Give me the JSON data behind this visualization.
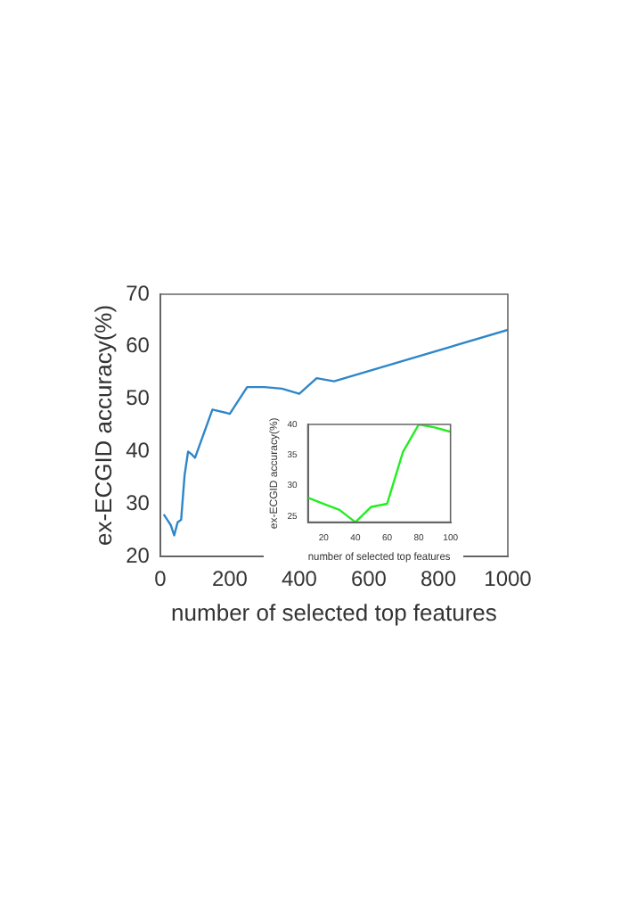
{
  "chart_data": [
    {
      "type": "line",
      "xlabel": "number of selected top features",
      "ylabel": "ex-ECGID accuracy(%)",
      "x": [
        10,
        20,
        30,
        40,
        50,
        60,
        70,
        80,
        90,
        100,
        150,
        200,
        250,
        300,
        350,
        400,
        450,
        500,
        1000
      ],
      "series": [
        {
          "color": "#2e86c8",
          "values": [
            28,
            27,
            26,
            24,
            26.5,
            27,
            35.5,
            40,
            39.5,
            38.8,
            48,
            47.2,
            52.3,
            52.3,
            52,
            51,
            54,
            53.4,
            63.2
          ]
        }
      ],
      "xlim": [
        0,
        1000
      ],
      "xticks": [
        0,
        200,
        400,
        600,
        800,
        1000
      ],
      "ylim": [
        20,
        70
      ],
      "yticks": [
        20,
        30,
        40,
        50,
        60,
        70
      ],
      "grid": false,
      "marker": "none",
      "line_style": "solid"
    },
    {
      "type": "line",
      "xlabel": "number of selected top features",
      "ylabel": "ex-ECGID accuracy(%)",
      "x": [
        10,
        20,
        30,
        40,
        50,
        60,
        70,
        80,
        90,
        100
      ],
      "series": [
        {
          "color": "#22ee22",
          "values": [
            28,
            27,
            26,
            24,
            26.5,
            27,
            35.5,
            40,
            39.5,
            38.8
          ]
        }
      ],
      "xlim": [
        10,
        100
      ],
      "xticks": [
        20,
        40,
        60,
        80,
        100
      ],
      "ylim": [
        24,
        40
      ],
      "yticks": [
        25,
        30,
        35,
        40
      ],
      "grid": false,
      "marker": "none",
      "line_style": "solid"
    }
  ]
}
